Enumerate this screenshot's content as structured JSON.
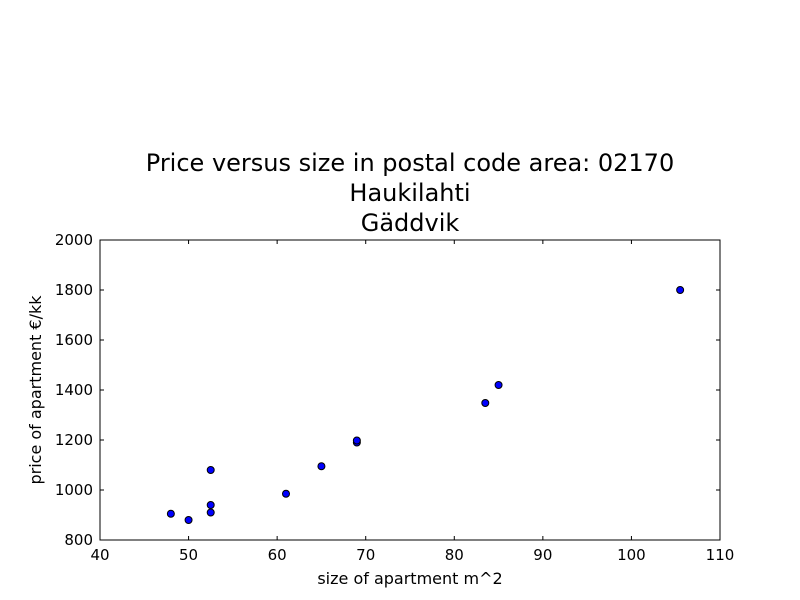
{
  "chart_data": {
    "type": "scatter",
    "title_lines": [
      "Price versus size in postal code area: 02170",
      "Haukilahti",
      "Gäddvik"
    ],
    "xlabel": "size of apartment m^2",
    "ylabel": "price of apartment €/kk",
    "xlim": [
      40,
      110
    ],
    "ylim": [
      800,
      2000
    ],
    "x_ticks": [
      40,
      50,
      60,
      70,
      80,
      90,
      100,
      110
    ],
    "y_ticks": [
      800,
      1000,
      1200,
      1400,
      1600,
      1800,
      2000
    ],
    "grid": false,
    "marker_color": "#0000ff",
    "marker_edge_color": "#000000",
    "points": [
      {
        "x": 48,
        "y": 905
      },
      {
        "x": 50,
        "y": 880
      },
      {
        "x": 52.5,
        "y": 1080
      },
      {
        "x": 52.5,
        "y": 940
      },
      {
        "x": 52.5,
        "y": 910
      },
      {
        "x": 61,
        "y": 985
      },
      {
        "x": 65,
        "y": 1095
      },
      {
        "x": 69,
        "y": 1190
      },
      {
        "x": 69,
        "y": 1198
      },
      {
        "x": 83.5,
        "y": 1348
      },
      {
        "x": 85,
        "y": 1420
      },
      {
        "x": 105.5,
        "y": 1800
      }
    ]
  }
}
